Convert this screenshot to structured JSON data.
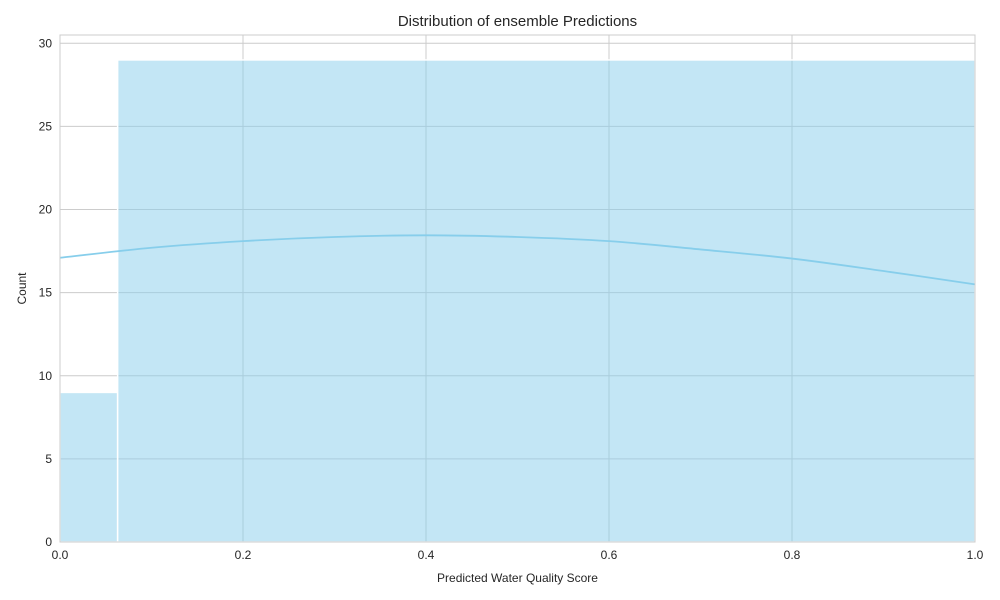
{
  "chart_data": {
    "type": "bar",
    "title": "Distribution of ensemble Predictions",
    "xlabel": "Predicted Water Quality Score",
    "ylabel": "Count",
    "xlim": [
      0.0,
      1.0
    ],
    "ylim": [
      0,
      30.5
    ],
    "xticks": [
      "0.0",
      "0.2",
      "0.4",
      "0.6",
      "0.8",
      "1.0"
    ],
    "yticks": [
      "0",
      "5",
      "10",
      "15",
      "20",
      "25",
      "30"
    ],
    "grid": true,
    "bins": [
      {
        "x0": 0.0,
        "x1": 0.063,
        "count": 9
      },
      {
        "x0": 0.063,
        "x1": 1.0,
        "count": 29
      }
    ],
    "kde": {
      "x": [
        0.0,
        0.1,
        0.2,
        0.3,
        0.4,
        0.5,
        0.6,
        0.7,
        0.8,
        0.9,
        1.0
      ],
      "y": [
        17.1,
        17.7,
        18.1,
        18.35,
        18.45,
        18.35,
        18.1,
        17.6,
        17.05,
        16.3,
        15.5
      ]
    },
    "bar_color": "#87ceeb",
    "bar_opacity": 0.5,
    "line_color": "#87ceeb"
  }
}
